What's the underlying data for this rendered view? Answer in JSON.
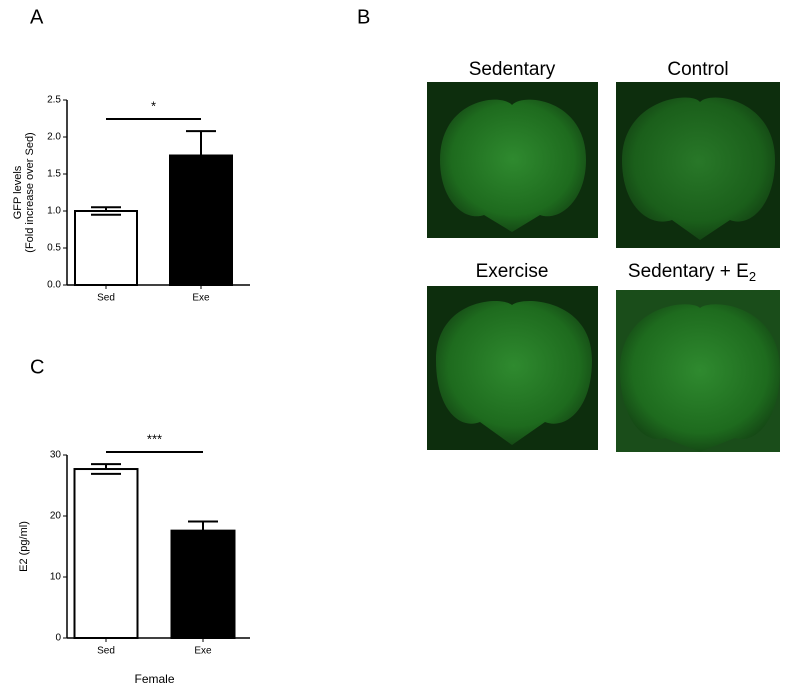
{
  "panel_labels": [
    "A",
    "B",
    "C"
  ],
  "chart_data": [
    {
      "type": "bar",
      "ylabel": "GFP levels\n(Fold increase over Sed)",
      "categories": [
        "Sed",
        "Exe"
      ],
      "values": [
        1.0,
        1.75
      ],
      "errors": [
        0.05,
        0.33
      ],
      "colors": [
        "#ffffff",
        "#000000"
      ],
      "ylim": [
        0,
        2.5
      ],
      "yticks": [
        {
          "value": 0,
          "label": "0.0"
        },
        {
          "value": 0.5,
          "label": "0.5"
        },
        {
          "value": 1,
          "label": "1.0"
        },
        {
          "value": 1.5,
          "label": "1.5"
        },
        {
          "value": 2,
          "label": "2.0"
        },
        {
          "value": 2.5,
          "label": "2.5"
        }
      ],
      "annotation": "*"
    },
    {
      "type": "bar",
      "ylabel": "E2 (pg/ml)",
      "xlabel": "Female",
      "categories": [
        "Sed",
        "Exe"
      ],
      "values": [
        27.7,
        17.6
      ],
      "errors": [
        0.8,
        1.5
      ],
      "colors": [
        "#ffffff",
        "#000000"
      ],
      "ylim": [
        0,
        30
      ],
      "yticks": [
        0,
        10,
        20,
        30
      ],
      "annotation": "***"
    }
  ],
  "images": [
    {
      "text": "Sedentary"
    },
    {
      "text": "Control"
    },
    {
      "text": "Exercise"
    },
    {
      "text": "Sedentary + E",
      "subscript": "2"
    }
  ]
}
